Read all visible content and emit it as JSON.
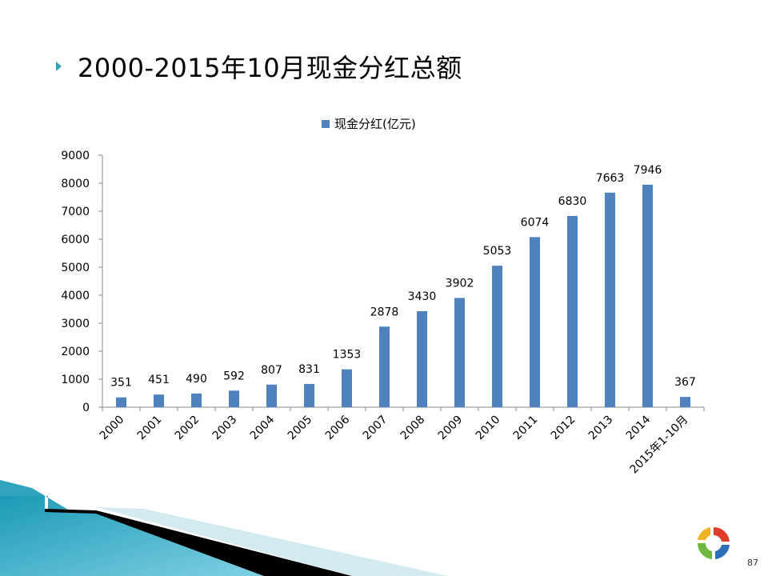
{
  "slide": {
    "title": "2000-2015年10月现金分红总额",
    "page_number": "87"
  },
  "colors": {
    "bar": "#4f81bd",
    "bullet": "#2aa3b8",
    "deco_teal": "#1b9ab6",
    "logo_red": "#e03c2c",
    "logo_green": "#6fb83f",
    "logo_blue": "#2a6fb8"
  },
  "chart_data": {
    "type": "bar",
    "categories": [
      "2000",
      "2001",
      "2002",
      "2003",
      "2004",
      "2005",
      "2006",
      "2007",
      "2008",
      "2009",
      "2010",
      "2011",
      "2012",
      "2013",
      "2014",
      "2015年1-10月"
    ],
    "series": [
      {
        "name": "现金分红(亿元)",
        "values": [
          351,
          451,
          490,
          592,
          807,
          831,
          1353,
          2878,
          3430,
          3902,
          5053,
          6074,
          6830,
          7663,
          7946,
          367
        ]
      }
    ],
    "y_ticks": [
      "0",
      "1000",
      "2000",
      "3000",
      "4000",
      "5000",
      "6000",
      "7000",
      "8000",
      "9000"
    ],
    "ylim": [
      0,
      9000
    ],
    "legend_position": "top",
    "grid": false,
    "data_labels": true
  }
}
